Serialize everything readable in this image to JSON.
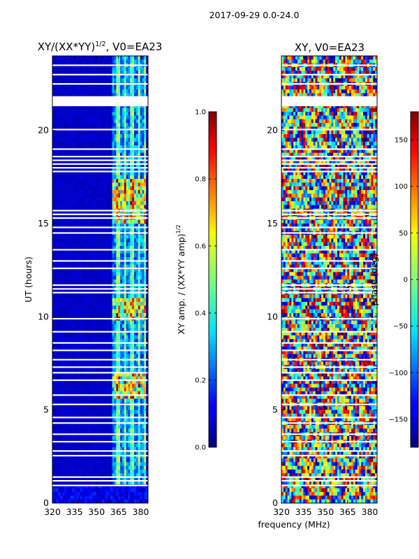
{
  "suptitle": "2017-09-29 0.0-24.0",
  "shared_xlabel": "frequency (MHz)",
  "chart_data": [
    {
      "type": "heatmap",
      "title": "XY/(XX*YY)^1/2, V0=EA23",
      "title_main": "XY/(XX*YY)",
      "title_exp": "1/2",
      "title_tail": ", V0=EA23",
      "ylabel": "UT (hours)",
      "xlim": [
        320,
        385
      ],
      "ylim": [
        0,
        24
      ],
      "xticks": [
        320,
        335,
        350,
        365,
        380
      ],
      "yticks": [
        0,
        5,
        10,
        15,
        20
      ],
      "colormap": "jet",
      "colorbar": {
        "label_main": "XY amp. / (XX*YY amp)",
        "label_exp": "1/2",
        "range": [
          0.0,
          1.0
        ],
        "ticks": [
          "0.0",
          "0.2",
          "0.4",
          "0.6",
          "0.8",
          "1.0"
        ],
        "tick_values": [
          0.0,
          0.2,
          0.4,
          0.6,
          0.8,
          1.0
        ]
      },
      "description_values": {
        "background_level": 0.05,
        "bright_band_MHz": [
          361,
          384
        ],
        "bright_band_level_range": [
          0.3,
          1.0
        ]
      }
    },
    {
      "type": "heatmap",
      "title": "XY, V0=EA23",
      "ylabel": "",
      "xlim": [
        320,
        385
      ],
      "ylim": [
        0,
        24
      ],
      "xticks": [
        320,
        335,
        350,
        365,
        380
      ],
      "yticks": [
        0,
        5,
        10,
        15,
        20
      ],
      "colormap": "jet",
      "colorbar": {
        "label": "phase (deg)",
        "range": [
          -180,
          180
        ],
        "ticks": [
          "−150",
          "−100",
          "−50",
          "0",
          "50",
          "100",
          "150"
        ],
        "tick_values": [
          -150,
          -100,
          -50,
          0,
          50,
          100,
          150
        ]
      }
    }
  ],
  "flagged_hours": [
    0.95,
    1.2,
    1.4,
    2.55,
    2.8,
    3.3,
    3.7,
    4.3,
    4.6,
    5.3,
    5.8,
    6.6,
    7.0,
    7.3,
    7.7,
    8.2,
    8.6,
    9.2,
    9.9,
    11.3,
    11.5,
    11.7,
    12.6,
    13.0,
    13.6,
    14.5,
    14.8,
    15.3,
    15.5,
    15.7,
    17.8,
    18.0,
    18.2,
    18.4,
    18.6,
    19.0,
    20.05,
    21.8,
    22.5,
    23.0,
    23.5
  ]
}
